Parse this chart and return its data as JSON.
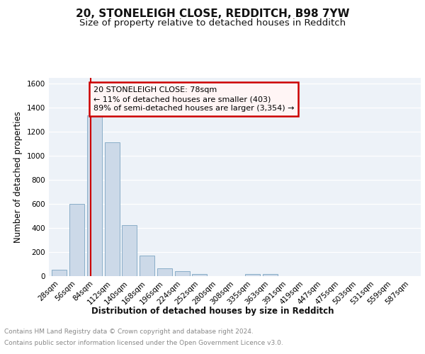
{
  "title": "20, STONELEIGH CLOSE, REDDITCH, B98 7YW",
  "subtitle": "Size of property relative to detached houses in Redditch",
  "xlabel": "Distribution of detached houses by size in Redditch",
  "ylabel": "Number of detached properties",
  "footer_line1": "Contains HM Land Registry data © Crown copyright and database right 2024.",
  "footer_line2": "Contains public sector information licensed under the Open Government Licence v3.0.",
  "bar_labels": [
    "28sqm",
    "56sqm",
    "84sqm",
    "112sqm",
    "140sqm",
    "168sqm",
    "196sqm",
    "224sqm",
    "252sqm",
    "280sqm",
    "308sqm",
    "335sqm",
    "363sqm",
    "391sqm",
    "419sqm",
    "447sqm",
    "475sqm",
    "503sqm",
    "531sqm",
    "559sqm",
    "587sqm"
  ],
  "bar_values": [
    55,
    600,
    1340,
    1115,
    425,
    170,
    65,
    40,
    15,
    0,
    0,
    15,
    15,
    0,
    0,
    0,
    0,
    0,
    0,
    0,
    0
  ],
  "bar_color": "#ccd9e8",
  "bar_edgecolor": "#8aaec8",
  "annotation_title": "20 STONELEIGH CLOSE: 78sqm",
  "annotation_line1": "← 11% of detached houses are smaller (403)",
  "annotation_line2": "89% of semi-detached houses are larger (3,354) →",
  "vline_color": "#cc0000",
  "annotation_box_edgecolor": "#cc0000",
  "ylim": [
    0,
    1650
  ],
  "yticks": [
    0,
    200,
    400,
    600,
    800,
    1000,
    1200,
    1400,
    1600
  ],
  "bg_color": "#edf2f8",
  "grid_color": "#ffffff",
  "title_fontsize": 11,
  "subtitle_fontsize": 9.5,
  "axis_label_fontsize": 8.5,
  "tick_fontsize": 7.5,
  "footer_fontsize": 6.5
}
